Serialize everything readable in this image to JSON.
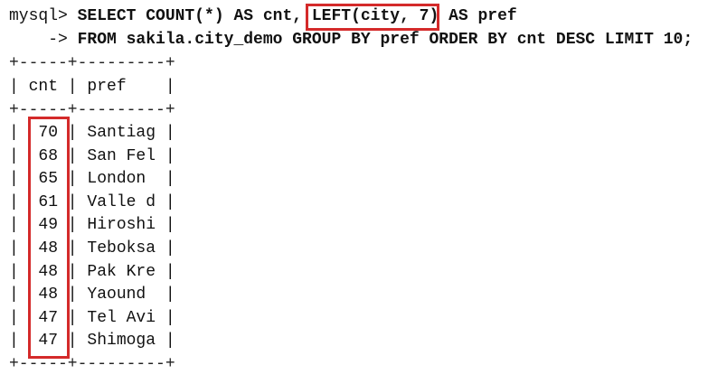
{
  "terminal": {
    "prompt": "mysql>",
    "continuation": "    ->",
    "query_line1": " SELECT COUNT(*) AS cnt, LEFT(city, 7) AS pref",
    "query_line2": " FROM sakila.city_demo GROUP BY pref ORDER BY cnt DESC LIMIT 10;",
    "highlighted_expression": "LEFT(city, 7)"
  },
  "result": {
    "border": "+-----+---------+",
    "header": "| cnt | pref    |",
    "columns": [
      "cnt",
      "pref"
    ],
    "rows": [
      {
        "cnt": "70",
        "pref": "Santiag"
      },
      {
        "cnt": "68",
        "pref": "San Fel"
      },
      {
        "cnt": "65",
        "pref": "London"
      },
      {
        "cnt": "61",
        "pref": "Valle d"
      },
      {
        "cnt": "49",
        "pref": "Hiroshi"
      },
      {
        "cnt": "48",
        "pref": "Teboksa"
      },
      {
        "cnt": "48",
        "pref": "Pak Kre"
      },
      {
        "cnt": "48",
        "pref": "Yaound"
      },
      {
        "cnt": "47",
        "pref": "Tel Avi"
      },
      {
        "cnt": "47",
        "pref": "Shimoga"
      }
    ],
    "row_lines": [
      "|  70 | Santiag |",
      "|  68 | San Fel |",
      "|  65 | London  |",
      "|  61 | Valle d |",
      "|  49 | Hiroshi |",
      "|  48 | Teboksa |",
      "|  48 | Pak Kre |",
      "|  48 | Yaound  |",
      "|  47 | Tel Avi |",
      "|  47 | Shimoga |"
    ]
  },
  "colors": {
    "highlight": "#d42a2a",
    "text": "#111111",
    "background": "#ffffff"
  }
}
